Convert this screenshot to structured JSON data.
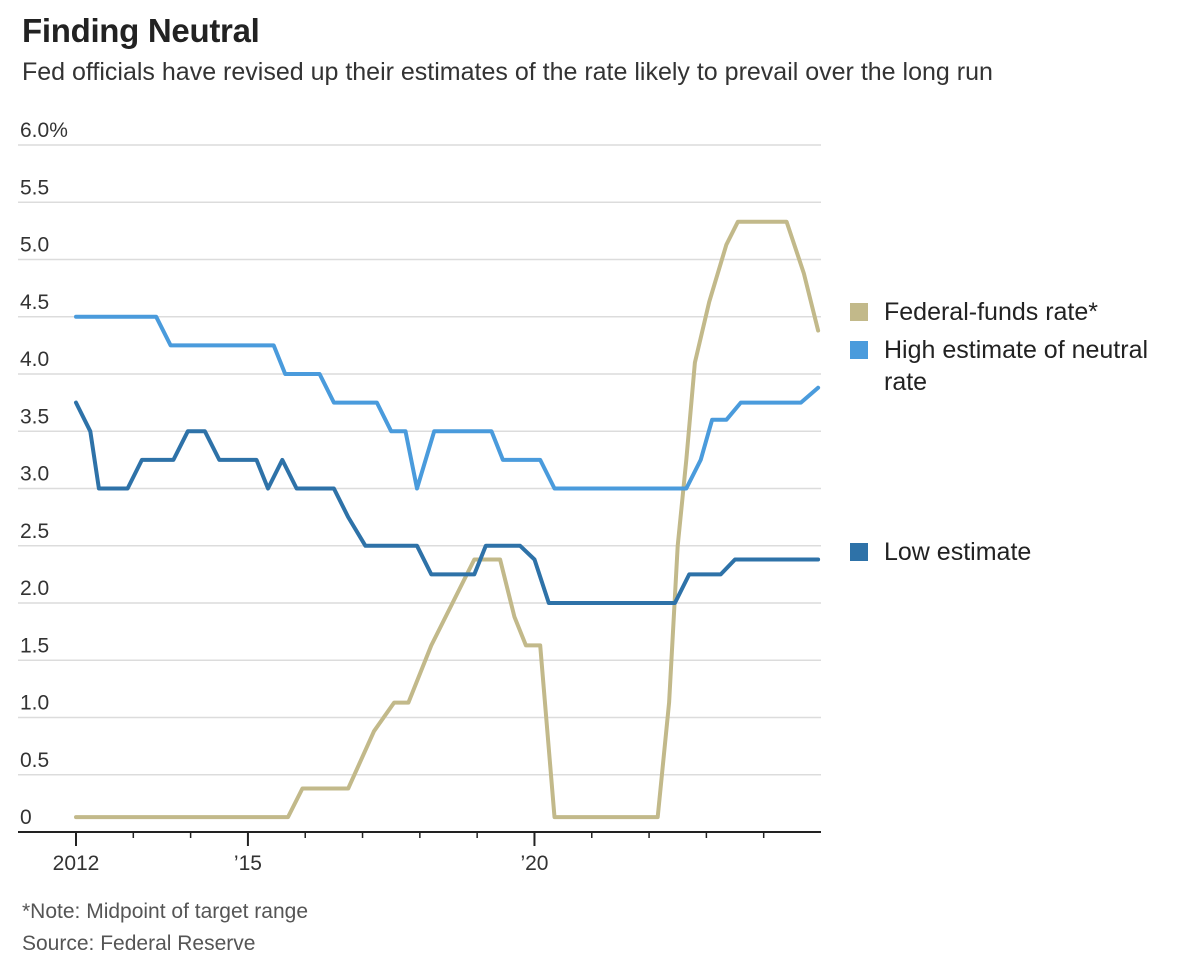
{
  "title": "Finding Neutral",
  "subtitle": "Fed officials have revised up their estimates of the rate likely to prevail over the long run",
  "note": "*Note: Midpoint of target range",
  "source": "Source: Federal Reserve",
  "colors": {
    "fed_funds": "#c2b98a",
    "high_estimate": "#4a9bdc",
    "low_estimate": "#2e72a8",
    "grid": "#dcdcdc",
    "axis": "#222222",
    "tick_text": "#333333"
  },
  "chart_data": {
    "type": "line",
    "title": "Finding Neutral",
    "subtitle": "Fed officials have revised up their estimates of the rate likely to prevail over the long run",
    "xlabel": "",
    "ylabel": "",
    "xlim": [
      2012,
      2025
    ],
    "ylim": [
      0,
      6
    ],
    "grid": "horizontal",
    "legend_position": "right",
    "y_ticks": [
      0,
      0.5,
      1,
      1.5,
      2,
      2.5,
      3,
      3.5,
      4,
      4.5,
      5,
      5.5,
      6
    ],
    "y_tick_labels": [
      "0",
      "0.5",
      "1.0",
      "1.5",
      "2.0",
      "2.5",
      "3.0",
      "3.5",
      "4.0",
      "4.5",
      "5.0",
      "5.5",
      "6.0%"
    ],
    "x_ticks": [
      2012,
      2015,
      2020
    ],
    "x_tick_labels": [
      "2012",
      "’15",
      "’20"
    ],
    "x_minor_ticks": [
      2012,
      2013,
      2014,
      2015,
      2016,
      2017,
      2018,
      2019,
      2020,
      2021,
      2022,
      2023,
      2024
    ],
    "series": [
      {
        "name": "Federal-funds rate*",
        "key": "fed_funds",
        "points": [
          [
            2012.0,
            0.13
          ],
          [
            2015.7,
            0.13
          ],
          [
            2015.95,
            0.38
          ],
          [
            2016.75,
            0.38
          ],
          [
            2017.2,
            0.88
          ],
          [
            2017.55,
            1.13
          ],
          [
            2017.8,
            1.13
          ],
          [
            2018.2,
            1.63
          ],
          [
            2018.95,
            2.38
          ],
          [
            2019.4,
            2.38
          ],
          [
            2019.65,
            1.88
          ],
          [
            2019.85,
            1.63
          ],
          [
            2020.1,
            1.63
          ],
          [
            2020.35,
            0.13
          ],
          [
            2022.15,
            0.13
          ],
          [
            2022.35,
            1.13
          ],
          [
            2022.5,
            2.5
          ],
          [
            2022.65,
            3.25
          ],
          [
            2022.8,
            4.1
          ],
          [
            2023.05,
            4.63
          ],
          [
            2023.35,
            5.13
          ],
          [
            2023.55,
            5.33
          ],
          [
            2024.4,
            5.33
          ],
          [
            2024.7,
            4.88
          ],
          [
            2024.95,
            4.38
          ]
        ]
      },
      {
        "name": "High estimate of neutral rate",
        "key": "high_estimate",
        "points": [
          [
            2012.0,
            4.5
          ],
          [
            2013.4,
            4.5
          ],
          [
            2013.65,
            4.25
          ],
          [
            2015.45,
            4.25
          ],
          [
            2015.65,
            4.0
          ],
          [
            2016.25,
            4.0
          ],
          [
            2016.5,
            3.75
          ],
          [
            2017.25,
            3.75
          ],
          [
            2017.5,
            3.5
          ],
          [
            2017.75,
            3.5
          ],
          [
            2017.95,
            3.0
          ],
          [
            2018.25,
            3.5
          ],
          [
            2019.25,
            3.5
          ],
          [
            2019.45,
            3.25
          ],
          [
            2020.1,
            3.25
          ],
          [
            2020.35,
            3.0
          ],
          [
            2022.65,
            3.0
          ],
          [
            2022.9,
            3.25
          ],
          [
            2023.1,
            3.6
          ],
          [
            2023.35,
            3.6
          ],
          [
            2023.6,
            3.75
          ],
          [
            2024.65,
            3.75
          ],
          [
            2024.95,
            3.88
          ]
        ]
      },
      {
        "name": "Low estimate",
        "key": "low_estimate",
        "points": [
          [
            2012.0,
            3.75
          ],
          [
            2012.25,
            3.5
          ],
          [
            2012.4,
            3.0
          ],
          [
            2012.9,
            3.0
          ],
          [
            2013.15,
            3.25
          ],
          [
            2013.7,
            3.25
          ],
          [
            2013.95,
            3.5
          ],
          [
            2014.25,
            3.5
          ],
          [
            2014.5,
            3.25
          ],
          [
            2015.15,
            3.25
          ],
          [
            2015.35,
            3.0
          ],
          [
            2015.6,
            3.25
          ],
          [
            2015.85,
            3.0
          ],
          [
            2016.5,
            3.0
          ],
          [
            2016.75,
            2.75
          ],
          [
            2017.05,
            2.5
          ],
          [
            2017.95,
            2.5
          ],
          [
            2018.2,
            2.25
          ],
          [
            2018.95,
            2.25
          ],
          [
            2019.15,
            2.5
          ],
          [
            2019.75,
            2.5
          ],
          [
            2020.0,
            2.38
          ],
          [
            2020.25,
            2.0
          ],
          [
            2022.45,
            2.0
          ],
          [
            2022.7,
            2.25
          ],
          [
            2023.25,
            2.25
          ],
          [
            2023.5,
            2.38
          ],
          [
            2024.95,
            2.38
          ]
        ]
      }
    ]
  }
}
